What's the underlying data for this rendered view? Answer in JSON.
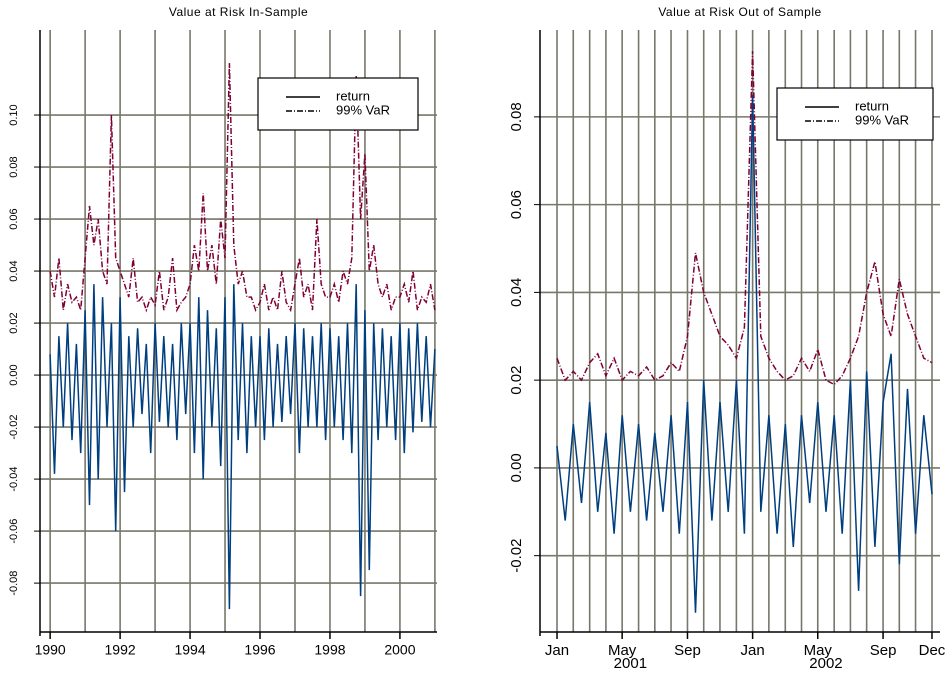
{
  "chart_data": [
    {
      "type": "line",
      "title": "Value at Risk In-Sample",
      "x": [
        1990.0,
        1990.125,
        1990.25,
        1990.375,
        1990.5,
        1990.625,
        1990.75,
        1990.875,
        1991.0,
        1991.125,
        1991.25,
        1991.375,
        1991.5,
        1991.625,
        1991.75,
        1991.875,
        1992.0,
        1992.125,
        1992.25,
        1992.375,
        1992.5,
        1992.625,
        1992.75,
        1992.875,
        1993.0,
        1993.125,
        1993.25,
        1993.375,
        1993.5,
        1993.625,
        1993.75,
        1993.875,
        1994.0,
        1994.125,
        1994.25,
        1994.375,
        1994.5,
        1994.625,
        1994.75,
        1994.875,
        1995.0,
        1995.125,
        1995.25,
        1995.375,
        1995.5,
        1995.625,
        1995.75,
        1995.875,
        1996.0,
        1996.125,
        1996.25,
        1996.375,
        1996.5,
        1996.625,
        1996.75,
        1996.875,
        1997.0,
        1997.125,
        1997.25,
        1997.375,
        1997.5,
        1997.625,
        1997.75,
        1997.875,
        1998.0,
        1998.125,
        1998.25,
        1998.375,
        1998.5,
        1998.625,
        1998.75,
        1998.875,
        1999.0,
        1999.125,
        1999.25,
        1999.375,
        1999.5,
        1999.625,
        1999.75,
        1999.875,
        2000.0,
        2000.125,
        2000.25,
        2000.375,
        2000.5,
        2000.625,
        2000.75,
        2000.875,
        2001.0
      ],
      "series": [
        {
          "name": "return",
          "color": "#003f7f",
          "line_style": "solid",
          "values": [
            0.008,
            -0.038,
            0.015,
            -0.02,
            0.02,
            -0.025,
            0.012,
            -0.03,
            0.025,
            -0.05,
            0.035,
            -0.04,
            0.03,
            -0.02,
            0.02,
            -0.06,
            0.03,
            -0.045,
            0.015,
            -0.02,
            0.018,
            -0.015,
            0.012,
            -0.03,
            0.02,
            -0.018,
            0.015,
            -0.02,
            0.012,
            -0.025,
            0.02,
            -0.015,
            0.02,
            -0.03,
            0.03,
            -0.04,
            0.025,
            -0.02,
            0.018,
            -0.035,
            0.03,
            -0.09,
            0.035,
            -0.025,
            0.02,
            -0.03,
            0.015,
            -0.02,
            0.015,
            -0.025,
            0.018,
            -0.02,
            0.012,
            -0.018,
            0.015,
            -0.015,
            0.02,
            -0.03,
            0.018,
            -0.02,
            0.015,
            -0.02,
            0.02,
            -0.025,
            0.018,
            -0.02,
            0.015,
            -0.025,
            0.02,
            -0.03,
            0.035,
            -0.085,
            0.025,
            -0.075,
            0.02,
            -0.025,
            0.018,
            -0.02,
            0.015,
            -0.025,
            0.02,
            -0.03,
            0.018,
            -0.022,
            0.02,
            -0.018,
            0.015,
            -0.02,
            0.01
          ]
        },
        {
          "name": "99% VaR",
          "color": "#7f0033",
          "line_style": "dashdot",
          "values": [
            0.04,
            0.03,
            0.045,
            0.025,
            0.035,
            0.028,
            0.03,
            0.025,
            0.045,
            0.065,
            0.05,
            0.06,
            0.04,
            0.035,
            0.1,
            0.045,
            0.04,
            0.035,
            0.03,
            0.045,
            0.028,
            0.03,
            0.025,
            0.03,
            0.027,
            0.04,
            0.025,
            0.03,
            0.045,
            0.025,
            0.028,
            0.03,
            0.035,
            0.05,
            0.04,
            0.07,
            0.04,
            0.05,
            0.035,
            0.06,
            0.045,
            0.12,
            0.05,
            0.035,
            0.04,
            0.03,
            0.03,
            0.025,
            0.028,
            0.035,
            0.025,
            0.03,
            0.025,
            0.04,
            0.028,
            0.025,
            0.035,
            0.045,
            0.03,
            0.035,
            0.025,
            0.06,
            0.035,
            0.03,
            0.03,
            0.035,
            0.028,
            0.04,
            0.035,
            0.045,
            0.115,
            0.06,
            0.085,
            0.04,
            0.05,
            0.035,
            0.03,
            0.035,
            0.025,
            0.03,
            0.03,
            0.035,
            0.028,
            0.04,
            0.025,
            0.03,
            0.028,
            0.035,
            0.025
          ]
        }
      ],
      "xlim": [
        1989.71,
        2001.06
      ],
      "xticks": [
        1990,
        1992,
        1994,
        1996,
        1998,
        2000
      ],
      "xgrid": [
        1990,
        1991,
        1992,
        1993,
        1994,
        1995,
        1996,
        1997,
        1998,
        1999,
        2000,
        2001
      ],
      "ylim": [
        -0.0988,
        0.1327
      ],
      "yticks": [
        -0.08,
        -0.06,
        -0.04,
        -0.02,
        {
          "value": 0,
          "label": "0.00"
        },
        0.02,
        0.04,
        0.06,
        0.08,
        {
          "value": 0.1,
          "label": "0.10"
        }
      ],
      "grid": true,
      "legend": "upper right"
    },
    {
      "type": "line",
      "title": "Value at Risk Out of Sample",
      "x": [
        2001.0,
        2001.042,
        2001.083,
        2001.125,
        2001.167,
        2001.208,
        2001.25,
        2001.292,
        2001.333,
        2001.375,
        2001.417,
        2001.458,
        2001.5,
        2001.542,
        2001.583,
        2001.625,
        2001.667,
        2001.708,
        2001.75,
        2001.792,
        2001.833,
        2001.875,
        2001.917,
        2001.958,
        2002.0,
        2002.042,
        2002.083,
        2002.125,
        2002.167,
        2002.208,
        2002.25,
        2002.292,
        2002.333,
        2002.375,
        2002.417,
        2002.458,
        2002.5,
        2002.542,
        2002.583,
        2002.625,
        2002.667,
        2002.708,
        2002.75,
        2002.792,
        2002.833,
        2002.875,
        2002.917
      ],
      "series": [
        {
          "name": "return",
          "color": "#003f7f",
          "line_style": "solid",
          "values": [
            0.005,
            -0.012,
            0.01,
            -0.008,
            0.015,
            -0.01,
            0.008,
            -0.015,
            0.012,
            -0.01,
            0.01,
            -0.012,
            0.008,
            -0.01,
            0.012,
            -0.015,
            0.015,
            -0.033,
            0.02,
            -0.012,
            0.015,
            -0.01,
            0.02,
            -0.015,
            0.085,
            -0.01,
            0.012,
            -0.015,
            0.01,
            -0.018,
            0.012,
            -0.008,
            0.015,
            -0.01,
            0.012,
            -0.015,
            0.02,
            -0.028,
            0.022,
            -0.018,
            0.015,
            0.026,
            -0.022,
            0.018,
            -0.015,
            0.012,
            -0.006
          ]
        },
        {
          "name": "99% VaR",
          "color": "#7f0033",
          "line_style": "dashdot",
          "values": [
            0.025,
            0.02,
            0.022,
            0.02,
            0.024,
            0.026,
            0.021,
            0.025,
            0.02,
            0.022,
            0.021,
            0.023,
            0.02,
            0.021,
            0.024,
            0.022,
            0.03,
            0.049,
            0.04,
            0.035,
            0.03,
            0.028,
            0.025,
            0.032,
            0.095,
            0.03,
            0.025,
            0.022,
            0.02,
            0.021,
            0.025,
            0.022,
            0.027,
            0.02,
            0.019,
            0.021,
            0.025,
            0.03,
            0.04,
            0.047,
            0.035,
            0.03,
            0.043,
            0.035,
            0.03,
            0.025,
            0.024
          ]
        }
      ],
      "xlim": [
        2000.913,
        2002.958
      ],
      "xticks": [
        {
          "value": 2001.0,
          "label": "Jan"
        },
        {
          "value": 2001.333,
          "label": "May"
        },
        {
          "value": 2001.667,
          "label": "Sep"
        },
        {
          "value": 2002.0,
          "label": "Jan"
        },
        {
          "value": 2002.333,
          "label": "May"
        },
        {
          "value": 2002.667,
          "label": "Sep"
        },
        {
          "value": 2002.917,
          "label": "Dec"
        }
      ],
      "xyear_labels": [
        {
          "value": 2001.375,
          "label": "2001"
        },
        {
          "value": 2002.375,
          "label": "2002"
        }
      ],
      "xgrid": [
        2001.0,
        2001.083,
        2001.167,
        2001.25,
        2001.333,
        2001.417,
        2001.5,
        2001.583,
        2001.667,
        2001.75,
        2001.833,
        2001.917,
        2002.0,
        2002.083,
        2002.167,
        2002.25,
        2002.333,
        2002.417,
        2002.5,
        2002.583,
        2002.667,
        2002.75,
        2002.833,
        2002.917
      ],
      "ylim": [
        -0.0374,
        0.0998
      ],
      "yticks": [
        -0.02,
        {
          "value": 0,
          "label": "0.00"
        },
        0.02,
        0.04,
        0.06,
        0.08
      ],
      "grid": true,
      "legend": "upper right"
    }
  ]
}
